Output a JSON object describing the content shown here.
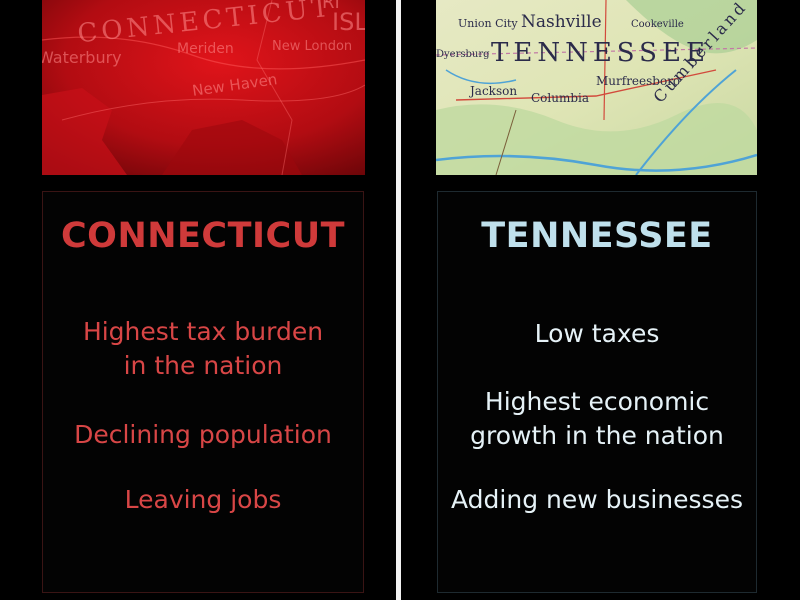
{
  "connecticut": {
    "title": "CONNECTICUT",
    "facts": [
      "Highest tax burden\nin the nation",
      "Declining population",
      "Leaving jobs"
    ],
    "map_labels": [
      "CONNECTICUT",
      "ISLA",
      "Waterbury",
      "Meriden",
      "New London",
      "New Haven",
      "RI"
    ],
    "accent_color": "#cf3a3a"
  },
  "tennessee": {
    "title": "TENNESSEE",
    "facts": [
      "Low taxes",
      "Highest economic\ngrowth in the nation",
      "Adding new businesses"
    ],
    "map_labels": [
      "Union City",
      "Nashville",
      "Cookeville",
      "Dyersburg",
      "TENNESSEE",
      "Murfreesboro",
      "Jackson",
      "Columbia",
      "Cumberland"
    ],
    "accent_color": "#bfe0ec"
  }
}
